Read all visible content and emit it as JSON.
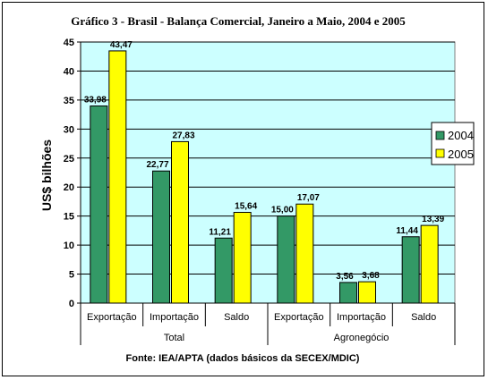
{
  "chart_data": {
    "type": "bar",
    "title": "Gráfico 3 - Brasil - Balança Comercial, Janeiro a Maio, 2004 e 2005",
    "ylabel": "US$ bilhões",
    "ylim": [
      0,
      45
    ],
    "yticks": [
      "0",
      "5",
      "10",
      "15",
      "20",
      "25",
      "30",
      "35",
      "40",
      "45"
    ],
    "categories": [
      "Exportação",
      "Importação",
      "Saldo",
      "Exportação",
      "Importação",
      "Saldo"
    ],
    "groups": [
      {
        "label": "Total",
        "span": [
          0,
          2
        ]
      },
      {
        "label": "Agronegócio",
        "span": [
          3,
          5
        ]
      }
    ],
    "series": [
      {
        "name": "2004",
        "color": "#339966",
        "values": [
          33.98,
          22.77,
          11.21,
          15.0,
          3.56,
          11.44
        ],
        "labels": [
          "33,98",
          "22,77",
          "11,21",
          "15,00",
          "3,56",
          "11,44"
        ]
      },
      {
        "name": "2005",
        "color": "#ffff00",
        "values": [
          43.47,
          27.83,
          15.64,
          17.07,
          3.68,
          13.39
        ],
        "labels": [
          "43,47",
          "27,83",
          "15,64",
          "17,07",
          "3,68",
          "13,39"
        ]
      }
    ],
    "grid": true,
    "plot_background": "#ccffff",
    "legend_position": "right",
    "source": "Fonte: IEA/APTA (dados básicos da SECEX/MDIC)"
  }
}
